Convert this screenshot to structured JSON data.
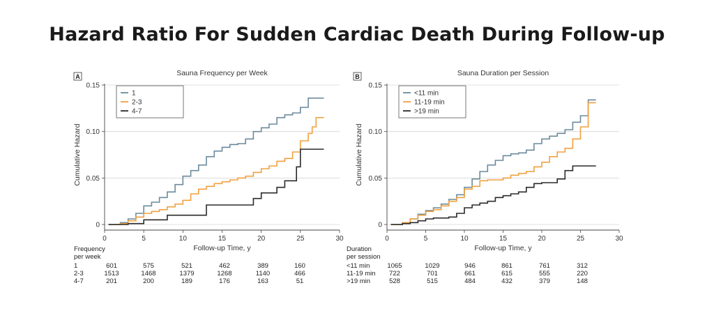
{
  "title": "Hazard Ratio For Sudden Cardiac Death During Follow-up",
  "chart_data": [
    {
      "type": "line",
      "panel_label": "A",
      "title": "Sauna Frequency per Week",
      "xlabel": "Follow-up Time, y",
      "ylabel": "Cumulative Hazard",
      "xlim": [
        0,
        30
      ],
      "ylim": [
        0,
        0.15
      ],
      "xticks": [
        "0",
        "5",
        "10",
        "15",
        "20",
        "25",
        "30"
      ],
      "yticks": [
        "0",
        "0.05",
        "0.10",
        "0.15"
      ],
      "grid": "horizontal",
      "legend_position": "top-left",
      "series": [
        {
          "name": "1",
          "color": "#6b8a9c",
          "x": [
            0.5,
            2,
            3,
            4,
            5,
            6,
            7,
            8,
            9,
            10,
            11,
            12,
            13,
            14,
            15,
            16,
            17,
            18,
            19,
            20,
            21,
            22,
            23,
            24,
            25,
            26,
            27,
            28
          ],
          "y": [
            0,
            0.002,
            0.006,
            0.012,
            0.02,
            0.024,
            0.029,
            0.035,
            0.043,
            0.052,
            0.058,
            0.064,
            0.073,
            0.079,
            0.083,
            0.086,
            0.087,
            0.092,
            0.1,
            0.104,
            0.108,
            0.115,
            0.118,
            0.12,
            0.126,
            0.136,
            0.136,
            0.136
          ]
        },
        {
          "name": "2-3",
          "color": "#f0a040",
          "x": [
            0.5,
            2,
            3,
            4,
            5,
            6,
            7,
            8,
            9,
            10,
            11,
            12,
            13,
            14,
            15,
            16,
            17,
            18,
            19,
            20,
            21,
            22,
            23,
            24,
            25,
            26,
            26.5,
            27,
            28
          ],
          "y": [
            0,
            0.001,
            0.004,
            0.008,
            0.012,
            0.014,
            0.016,
            0.019,
            0.022,
            0.026,
            0.033,
            0.038,
            0.041,
            0.044,
            0.046,
            0.048,
            0.05,
            0.052,
            0.056,
            0.06,
            0.063,
            0.068,
            0.071,
            0.078,
            0.09,
            0.098,
            0.105,
            0.115,
            0.115
          ]
        },
        {
          "name": "4-7",
          "color": "#2a2a2a",
          "x": [
            0.5,
            2,
            3,
            4,
            5,
            6,
            7,
            8,
            9,
            10,
            11,
            12,
            13,
            14,
            15,
            16,
            17,
            18,
            19,
            20,
            21,
            22,
            23,
            24,
            24.5,
            25,
            26,
            27,
            28
          ],
          "y": [
            0,
            0,
            0.001,
            0.001,
            0.005,
            0.005,
            0.005,
            0.01,
            0.01,
            0.01,
            0.01,
            0.01,
            0.021,
            0.021,
            0.021,
            0.021,
            0.021,
            0.021,
            0.028,
            0.034,
            0.034,
            0.04,
            0.047,
            0.047,
            0.062,
            0.081,
            0.081,
            0.081,
            0.081
          ]
        }
      ],
      "risk_table": {
        "header": [
          "Frequency",
          "per week"
        ],
        "times": [
          0,
          5,
          10,
          15,
          20,
          25
        ],
        "rows": [
          {
            "label": "1",
            "values": [
              "601",
              "575",
              "521",
              "462",
              "389",
              "160"
            ]
          },
          {
            "label": "2-3",
            "values": [
              "1513",
              "1468",
              "1379",
              "1268",
              "1140",
              "466"
            ]
          },
          {
            "label": "4-7",
            "values": [
              "201",
              "200",
              "189",
              "176",
              "163",
              "51"
            ]
          }
        ]
      }
    },
    {
      "type": "line",
      "panel_label": "B",
      "title": "Sauna Duration per Session",
      "xlabel": "Follow-up Time, y",
      "ylabel": "Cumulative Hazard",
      "xlim": [
        0,
        30
      ],
      "ylim": [
        0,
        0.15
      ],
      "xticks": [
        "0",
        "5",
        "10",
        "15",
        "20",
        "25",
        "30"
      ],
      "yticks": [
        "0",
        "0.05",
        "0.10",
        "0.15"
      ],
      "grid": "horizontal",
      "legend_position": "top-left",
      "series": [
        {
          "name": "<11 min",
          "color": "#6b8a9c",
          "x": [
            0.5,
            2,
            3,
            4,
            5,
            6,
            7,
            8,
            9,
            10,
            11,
            12,
            13,
            14,
            15,
            16,
            17,
            18,
            19,
            20,
            21,
            22,
            23,
            24,
            25,
            26,
            27
          ],
          "y": [
            0,
            0.002,
            0.006,
            0.011,
            0.015,
            0.018,
            0.022,
            0.027,
            0.032,
            0.04,
            0.049,
            0.057,
            0.064,
            0.069,
            0.074,
            0.076,
            0.077,
            0.08,
            0.087,
            0.092,
            0.095,
            0.098,
            0.102,
            0.11,
            0.117,
            0.134,
            0.134
          ]
        },
        {
          "name": "11-19 min",
          "color": "#f0a040",
          "x": [
            0.5,
            2,
            3,
            4,
            5,
            6,
            7,
            8,
            9,
            10,
            11,
            12,
            13,
            14,
            15,
            16,
            17,
            18,
            19,
            20,
            21,
            22,
            23,
            24,
            25,
            26,
            27
          ],
          "y": [
            0,
            0.002,
            0.006,
            0.01,
            0.014,
            0.016,
            0.02,
            0.025,
            0.029,
            0.038,
            0.041,
            0.047,
            0.048,
            0.048,
            0.05,
            0.053,
            0.055,
            0.057,
            0.062,
            0.067,
            0.073,
            0.078,
            0.082,
            0.092,
            0.105,
            0.131,
            0.131
          ]
        },
        {
          "name": ">19 min",
          "color": "#2a2a2a",
          "x": [
            0.5,
            2,
            3,
            4,
            5,
            6,
            7,
            8,
            9,
            10,
            11,
            12,
            13,
            14,
            15,
            16,
            17,
            18,
            19,
            20,
            21,
            22,
            23,
            24,
            25,
            26,
            27
          ],
          "y": [
            0,
            0.001,
            0.002,
            0.004,
            0.006,
            0.007,
            0.007,
            0.008,
            0.012,
            0.018,
            0.021,
            0.023,
            0.025,
            0.029,
            0.031,
            0.033,
            0.035,
            0.04,
            0.044,
            0.045,
            0.045,
            0.049,
            0.058,
            0.063,
            0.063,
            0.063,
            0.063
          ]
        }
      ],
      "risk_table": {
        "header": [
          "Duration",
          "per session"
        ],
        "times": [
          0,
          5,
          10,
          15,
          20,
          25
        ],
        "rows": [
          {
            "label": "<11 min",
            "values": [
              "1065",
              "1029",
              "946",
              "861",
              "761",
              "312"
            ]
          },
          {
            "label": "11-19 min",
            "values": [
              "722",
              "701",
              "661",
              "615",
              "555",
              "220"
            ]
          },
          {
            "label": ">19 min",
            "values": [
              "528",
              "515",
              "484",
              "432",
              "379",
              "148"
            ]
          }
        ]
      }
    }
  ]
}
